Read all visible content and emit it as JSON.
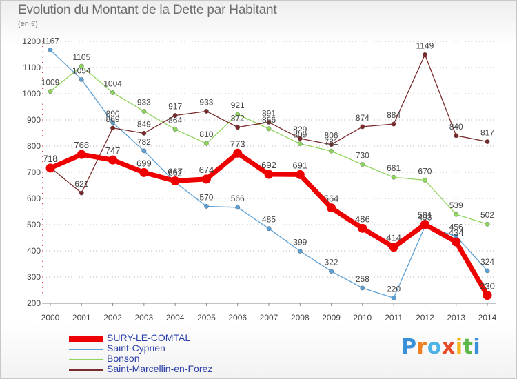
{
  "title": "Evolution du Montant de la Dette par Habitant",
  "unit_label": "(en €)",
  "brand": {
    "name": "Proxiti"
  },
  "colors": {
    "SURY-LE-COMTAL": "#ee0000",
    "Saint-Cyprien": "#5d9fd3",
    "Bonson": "#8fd45c",
    "Saint-Marcellin-en-Forez": "#7a2a2a",
    "grid": "#bbbbbb",
    "axis_text": "#444444",
    "legend_text": "#2a3fa8"
  },
  "chart_data": {
    "type": "line",
    "title": "Evolution du Montant de la Dette par Habitant",
    "ylabel": "(en €)",
    "xlabel": "",
    "x": [
      "2000",
      "2001",
      "2002",
      "2003",
      "2004",
      "2005",
      "2006",
      "2007",
      "2008",
      "2009",
      "2010",
      "2011",
      "2012",
      "2013",
      "2014"
    ],
    "ylim": [
      200,
      1200
    ],
    "yticks": [
      200,
      300,
      400,
      500,
      600,
      700,
      800,
      900,
      1000,
      1100,
      1200
    ],
    "grid": "horizontal-dotted",
    "legend_position": "bottom-left",
    "series": [
      {
        "name": "SURY-LE-COMTAL",
        "values": [
          716,
          768,
          747,
          699,
          667,
          674,
          773,
          692,
          691,
          564,
          486,
          414,
          501,
          434,
          230
        ]
      },
      {
        "name": "Saint-Cyprien",
        "values": [
          1167,
          1054,
          890,
          782,
          662,
          570,
          566,
          485,
          399,
          322,
          258,
          220,
          493,
          456,
          324
        ]
      },
      {
        "name": "Bonson",
        "values": [
          1009,
          1105,
          1004,
          933,
          864,
          810,
          921,
          866,
          809,
          781,
          730,
          681,
          670,
          539,
          502
        ]
      },
      {
        "name": "Saint-Marcellin-en-Forez",
        "values": [
          718,
          621,
          869,
          849,
          917,
          933,
          872,
          891,
          829,
          806,
          874,
          884,
          1149,
          840,
          817
        ]
      }
    ]
  }
}
